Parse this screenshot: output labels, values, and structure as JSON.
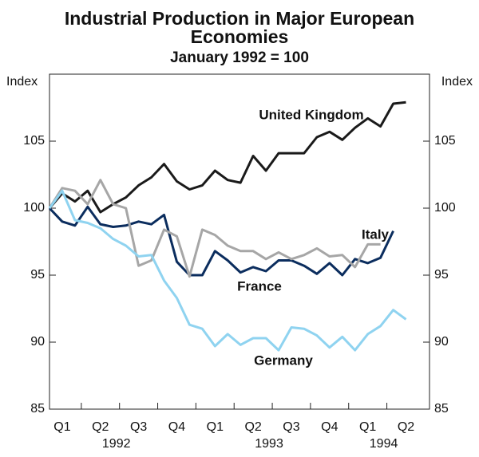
{
  "chart_data": {
    "type": "line",
    "title": "Industrial Production in Major European Economies",
    "subtitle": "January 1992 = 100",
    "ylabel": "Index",
    "y2label": "Index",
    "categories": [
      null,
      "Q1",
      null,
      null,
      "Q2",
      null,
      null,
      "Q3",
      null,
      null,
      "Q4",
      null,
      null,
      "Q1",
      null,
      null,
      "Q2",
      null,
      null,
      "Q3",
      null,
      null,
      "Q4",
      null,
      null,
      "Q1",
      null,
      null,
      "Q2",
      null
    ],
    "year_labels": [
      "1992",
      "1993",
      "1994"
    ],
    "ylim": [
      85,
      110
    ],
    "yticks": [
      85,
      90,
      95,
      100,
      105
    ],
    "y2lim": [
      85,
      110
    ],
    "y2ticks": [
      85,
      90,
      95,
      100,
      105
    ],
    "grid": false,
    "series": [
      {
        "name": "United Kingdom",
        "color": "#1a1a1a",
        "values": [
          100,
          101.1,
          100.5,
          101.3,
          99.7,
          100.3,
          100.8,
          101.7,
          102.3,
          103.3,
          102,
          101.4,
          101.7,
          102.8,
          102.1,
          101.9,
          103.9,
          102.8,
          104.1,
          104.1,
          104.1,
          105.3,
          105.7,
          105.1,
          106,
          106.7,
          106.1,
          107.8,
          107.9,
          null
        ]
      },
      {
        "name": "France",
        "color": "#0b2d5e",
        "values": [
          100,
          99,
          98.7,
          100.1,
          98.8,
          98.6,
          98.7,
          99,
          98.8,
          99.5,
          96,
          95,
          95,
          96.8,
          96.1,
          95.2,
          95.6,
          95.3,
          96.1,
          96.1,
          95.7,
          95.1,
          95.9,
          95,
          96.2,
          95.9,
          96.3,
          98.3,
          null,
          null
        ]
      },
      {
        "name": "Italy",
        "color": "#a6a6a6",
        "values": [
          100,
          101.5,
          101.3,
          100.3,
          102.1,
          100.3,
          100,
          95.7,
          96.1,
          98.4,
          97.9,
          94.9,
          98.4,
          98,
          97.2,
          96.8,
          96.8,
          96.2,
          96.7,
          96.2,
          96.5,
          97,
          96.4,
          96.5,
          95.6,
          97.3,
          97.3,
          null,
          null,
          null
        ]
      },
      {
        "name": "Germany",
        "color": "#8fd3f0",
        "values": [
          100,
          101.3,
          99.1,
          98.9,
          98.5,
          97.7,
          97.2,
          96.4,
          96.5,
          94.6,
          93.3,
          91.3,
          91,
          89.7,
          90.6,
          89.8,
          90.3,
          90.3,
          89.4,
          91.1,
          91,
          90.5,
          89.6,
          90.4,
          89.4,
          90.6,
          91.2,
          92.4,
          91.7,
          null
        ]
      }
    ]
  }
}
